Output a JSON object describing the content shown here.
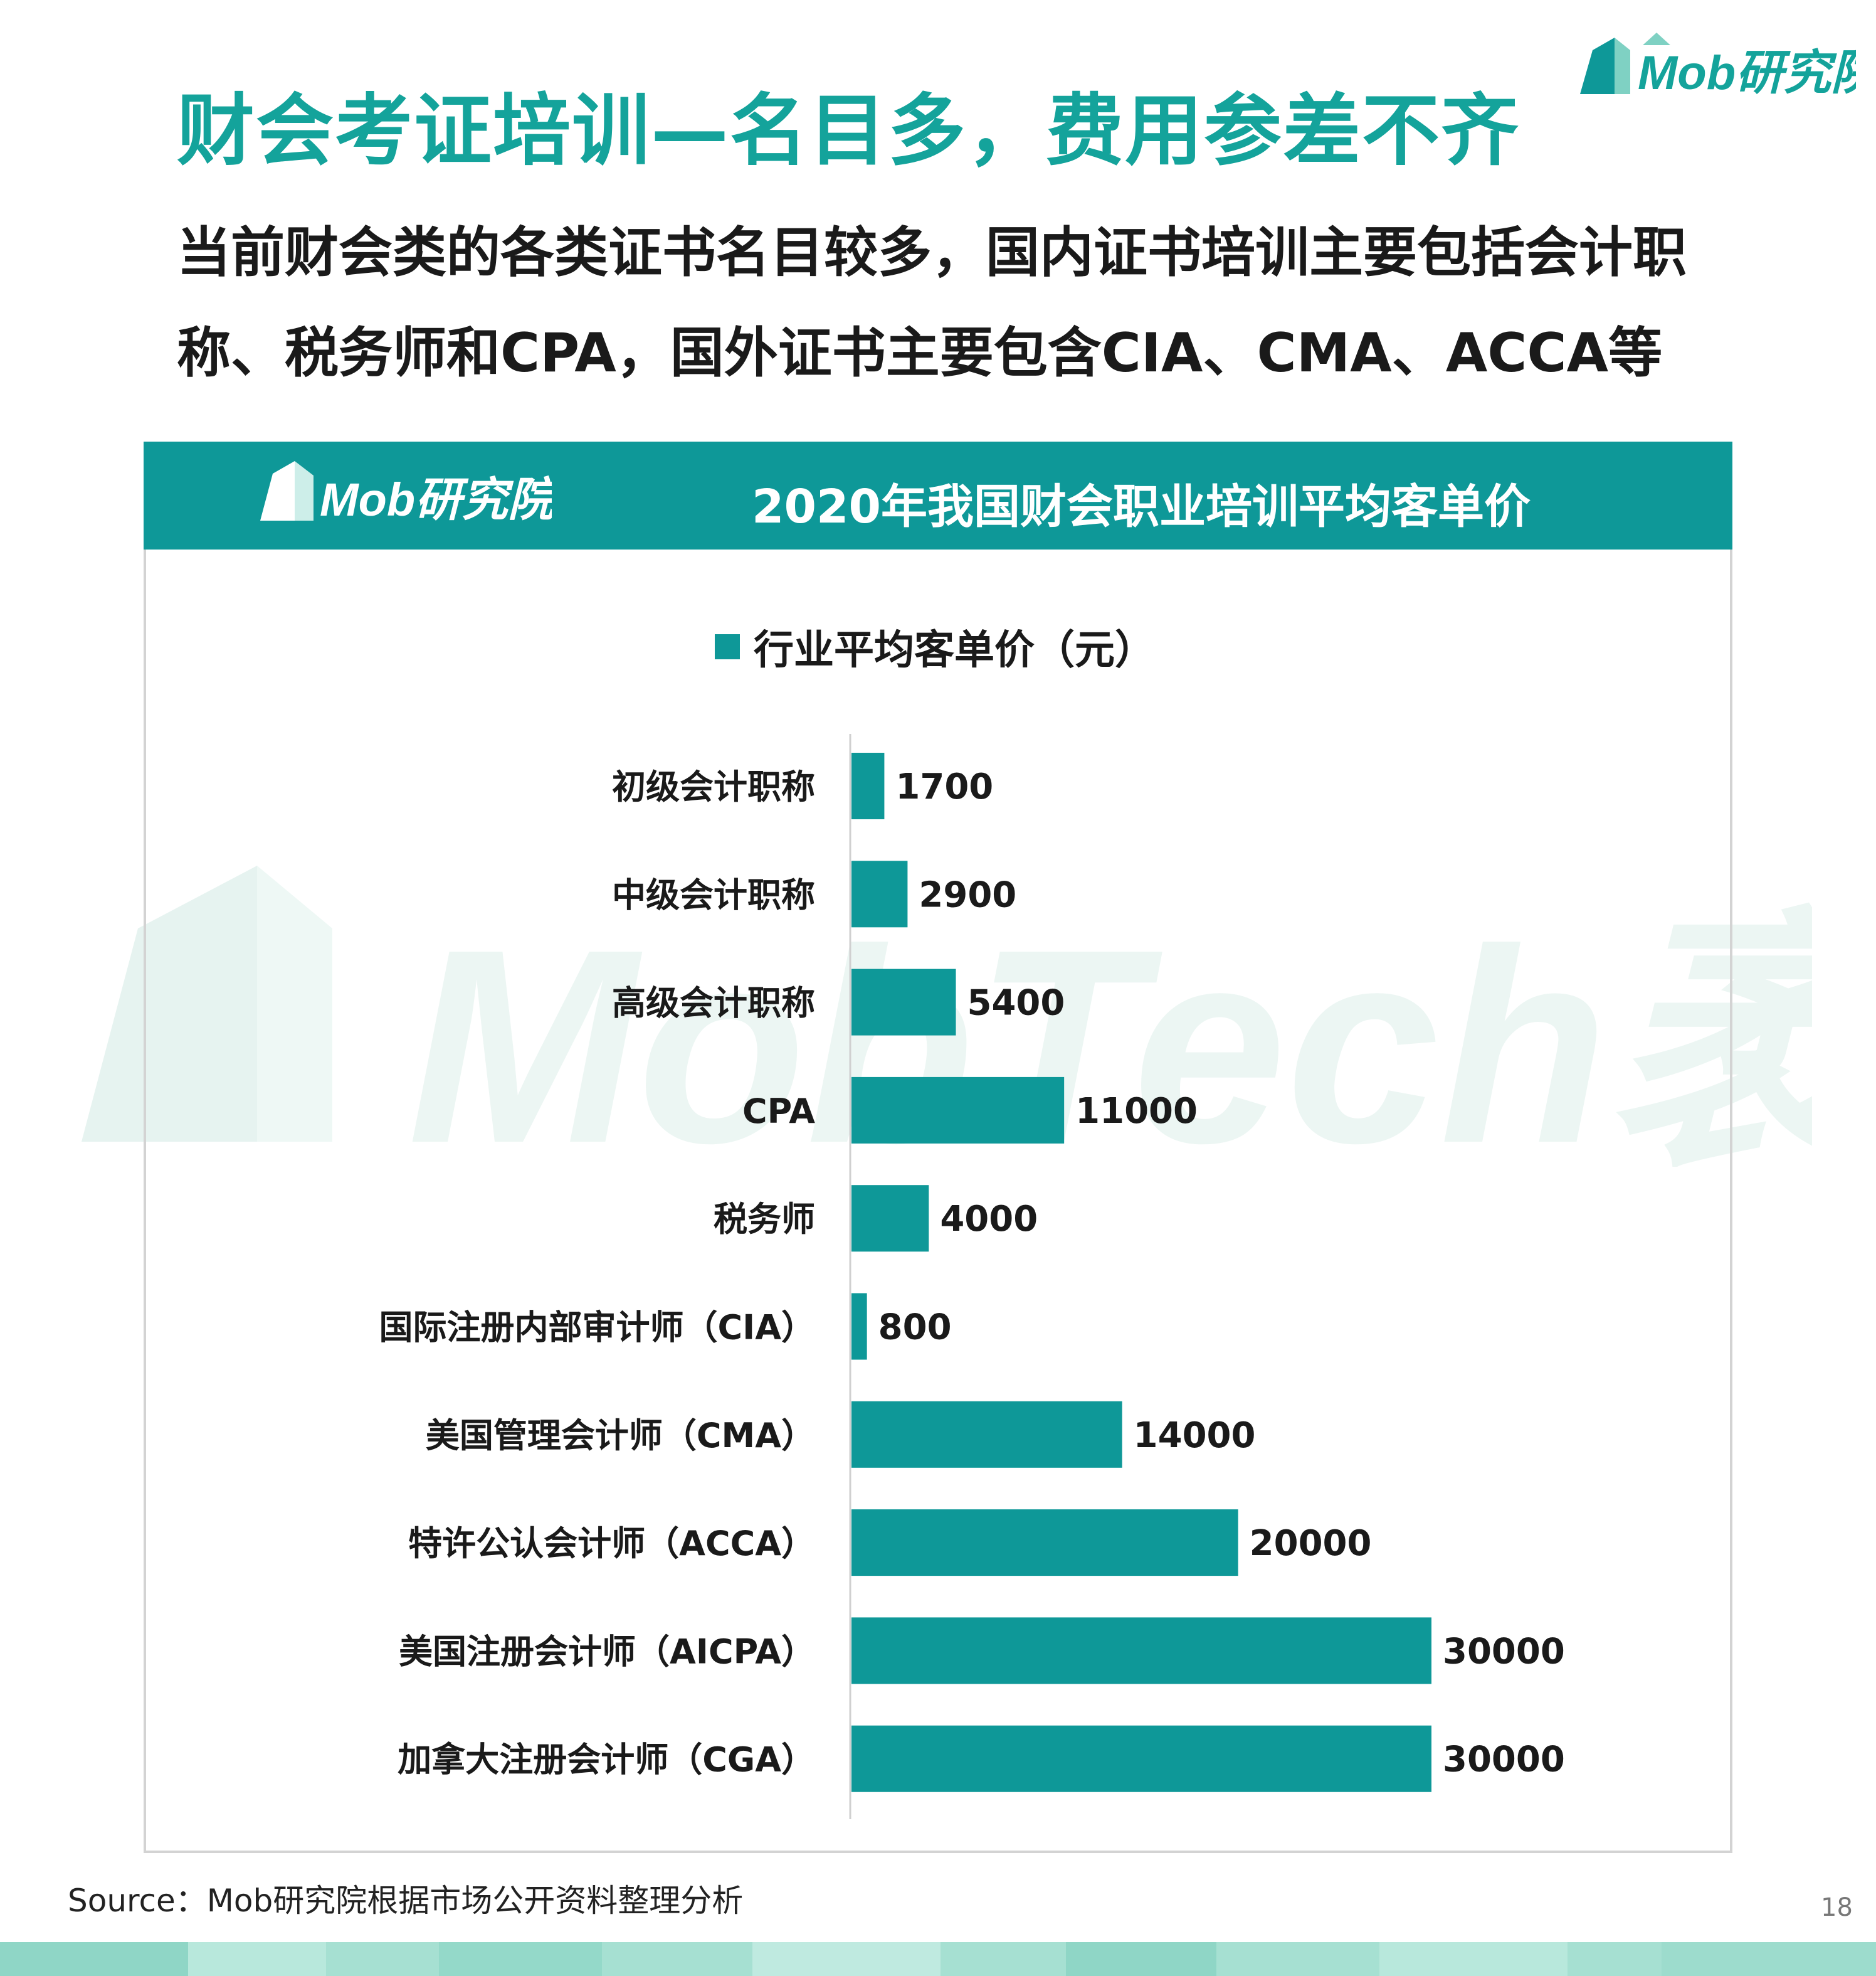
{
  "brand": {
    "logo_text": "Mob研究院"
  },
  "title": "财会考证培训—名目多，费用参差不齐",
  "subtitle_lines": [
    "当前财会类的各类证书名目较多，国内证书培训主要包括会计职",
    "称、税务师和CPA，国外证书主要包含CIA、CMA、ACCA等"
  ],
  "panel": {
    "logo_text": "Mob研究院"
  },
  "watermark": {
    "text": "MobTech袤博"
  },
  "chart_data": {
    "type": "bar",
    "orientation": "horizontal",
    "title": "2020年我国财会职业培训平均客单价",
    "categories": [
      "初级会计职称",
      "中级会计职称",
      "高级会计职称",
      "CPA",
      "税务师",
      "国际注册内部审计师（CIA）",
      "美国管理会计师（CMA）",
      "特许公认会计师（ACCA）",
      "美国注册会计师（AICPA）",
      "加拿大注册会计师（CGA）"
    ],
    "series": [
      {
        "name": "行业平均客单价（元）",
        "values": [
          1700,
          2900,
          5400,
          11000,
          4000,
          800,
          14000,
          20000,
          30000,
          30000
        ]
      }
    ],
    "xlim": [
      0,
      30000
    ],
    "data_labels": true,
    "legend_position": "top-center",
    "grid": false,
    "bar_color": "#0e9898"
  },
  "source": "Source：Mob研究院根据市场公开资料整理分析",
  "page_number": "18",
  "colors": {
    "accent": "#14a39b",
    "header_bg": "#0e9898",
    "text_dark": "#1a1a1a"
  }
}
